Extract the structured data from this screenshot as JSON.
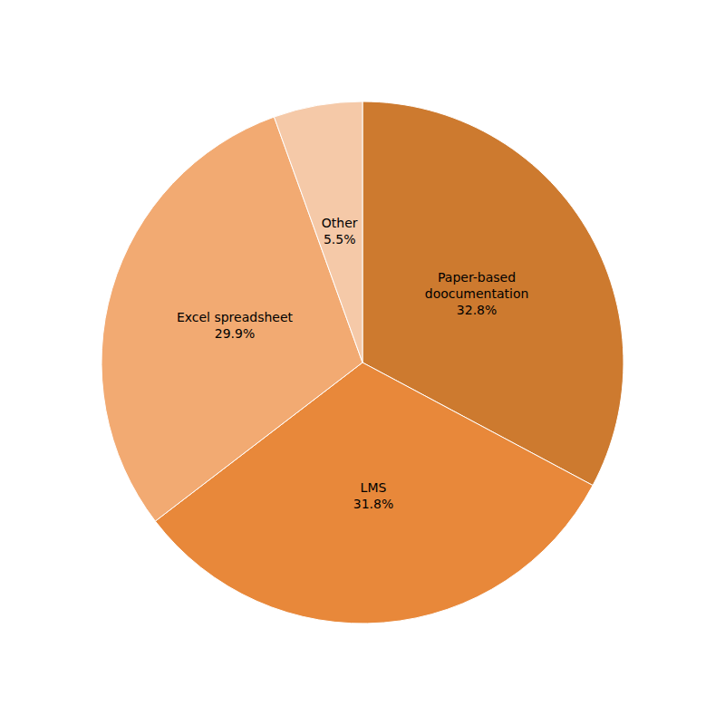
{
  "chart_data": {
    "type": "pie",
    "categories": [
      "Paper-based\ndoocumentation",
      "LMS",
      "Excel spreadsheet",
      "Other"
    ],
    "values": [
      32.8,
      31.8,
      29.9,
      5.5
    ],
    "value_labels": [
      "32.8%",
      "31.8%",
      "29.9%",
      "5.5%"
    ],
    "colors": [
      "#cd7a2f",
      "#e8883a",
      "#f2aa72",
      "#f5c9a8"
    ],
    "data_labels": true
  }
}
